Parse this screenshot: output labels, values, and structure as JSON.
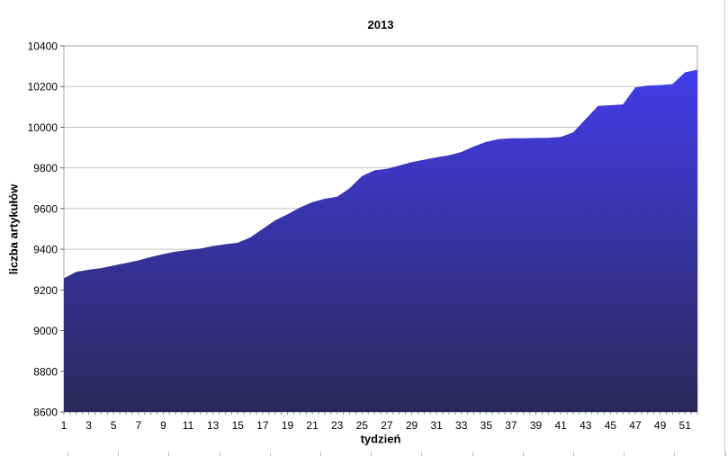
{
  "chart_data": {
    "type": "area",
    "title": "2013",
    "xlabel": "tydzień",
    "ylabel": "liczba artykułów",
    "x": [
      1,
      2,
      3,
      4,
      5,
      6,
      7,
      8,
      9,
      10,
      11,
      12,
      13,
      14,
      15,
      16,
      17,
      18,
      19,
      20,
      21,
      22,
      23,
      24,
      25,
      26,
      27,
      28,
      29,
      30,
      31,
      32,
      33,
      34,
      35,
      36,
      37,
      38,
      39,
      40,
      41,
      42,
      43,
      44,
      45,
      46,
      47,
      48,
      49,
      50,
      51,
      52
    ],
    "values": [
      9257,
      9289,
      9299,
      9307,
      9320,
      9332,
      9345,
      9362,
      9376,
      9388,
      9396,
      9403,
      9416,
      9425,
      9432,
      9458,
      9500,
      9542,
      9572,
      9605,
      9632,
      9648,
      9658,
      9700,
      9760,
      9788,
      9795,
      9812,
      9828,
      9840,
      9852,
      9862,
      9878,
      9905,
      9928,
      9942,
      9946,
      9946,
      9947,
      9948,
      9952,
      9975,
      10040,
      10105,
      10108,
      10112,
      10196,
      10205,
      10207,
      10212,
      10270,
      10283
    ],
    "xlim": [
      1,
      52
    ],
    "ylim": [
      8600,
      10400
    ],
    "y_ticks": [
      8600,
      8800,
      9000,
      9200,
      9400,
      9600,
      9800,
      10000,
      10200,
      10400
    ],
    "x_tick_labels": [
      1,
      3,
      5,
      7,
      9,
      11,
      13,
      15,
      17,
      19,
      21,
      23,
      25,
      27,
      29,
      31,
      33,
      35,
      37,
      39,
      41,
      43,
      45,
      47,
      49,
      51
    ],
    "grid": true,
    "legend": false,
    "colors": {
      "area_gradient_top": "#433DEA",
      "area_gradient_bottom": "#2A2959",
      "gridline": "#c3c3c3",
      "frame": "#a6a6a6",
      "tick": "#8c8c8c",
      "text": "#000000"
    }
  }
}
